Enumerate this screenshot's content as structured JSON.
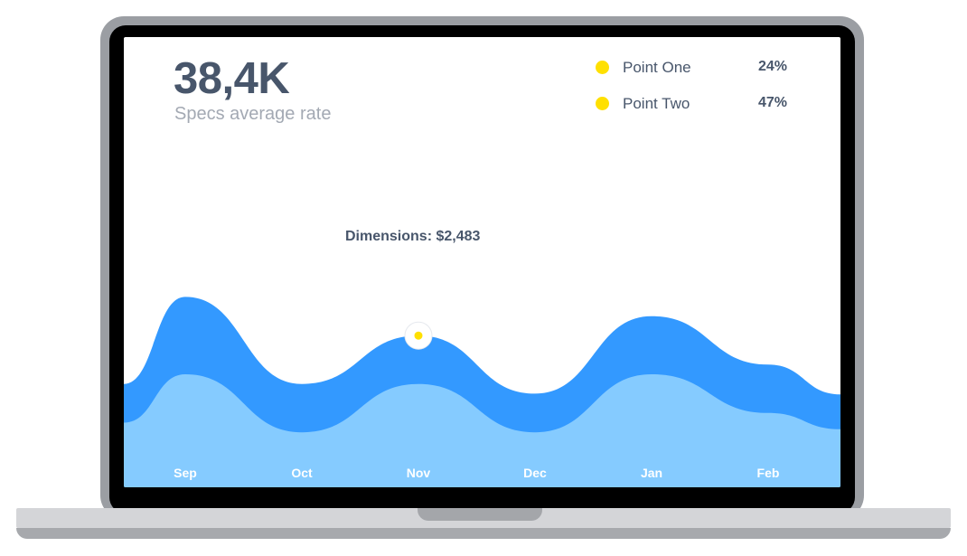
{
  "kpi": {
    "value": "38,4K",
    "label": "Specs average rate"
  },
  "legend": [
    {
      "label": "Point One",
      "value": "24%",
      "color": "#ffe000"
    },
    {
      "label": "Point Two",
      "value": "47%",
      "color": "#ffe000"
    }
  ],
  "annotation": {
    "text": "Dimensions: $2,483"
  },
  "chart_data": {
    "type": "area",
    "categories": [
      "Sep",
      "Oct",
      "Nov",
      "Dec",
      "Jan",
      "Feb"
    ],
    "grid": false,
    "axes_visible": false,
    "series": [
      {
        "color": "#3399ff",
        "values": [
          9,
          4.5,
          7,
          4,
          8,
          5.5
        ]
      },
      {
        "color": "#85cbff",
        "values": [
          5,
          2,
          4.5,
          2,
          5,
          3
        ]
      }
    ],
    "highlight": {
      "category": "Nov",
      "series_index": 0,
      "color": "#ffe000"
    },
    "colors": {
      "text": "#48566b",
      "muted": "#a3a9b3",
      "tick_label": "#ffffff"
    }
  }
}
